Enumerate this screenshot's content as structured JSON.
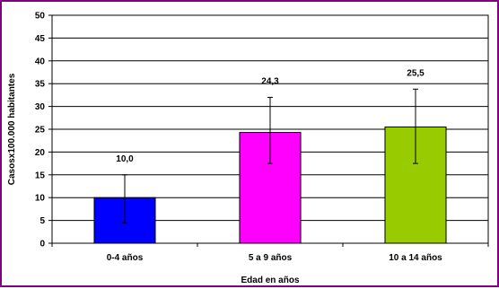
{
  "chart_data": {
    "type": "bar",
    "title": "",
    "xlabel": "Edad en años",
    "ylabel": "Casosx100.000 habitantes",
    "categories": [
      "0-4 años",
      "5 a 9 años",
      "10 a 14 años"
    ],
    "values": [
      10.0,
      24.3,
      25.5
    ],
    "value_labels": [
      "10,0",
      "24,3",
      "25,5"
    ],
    "error_bars": [
      {
        "low": 4.5,
        "high": 15.0
      },
      {
        "low": 17.5,
        "high": 32.0
      },
      {
        "low": 17.5,
        "high": 33.8
      }
    ],
    "bar_colors": [
      "#0000ff",
      "#ff00ff",
      "#99cc00"
    ],
    "ylim": [
      0,
      50
    ],
    "yticks": [
      0,
      5,
      10,
      15,
      20,
      25,
      30,
      35,
      40,
      45,
      50
    ],
    "grid": true,
    "legend": "none",
    "frame_color": "#800080"
  }
}
